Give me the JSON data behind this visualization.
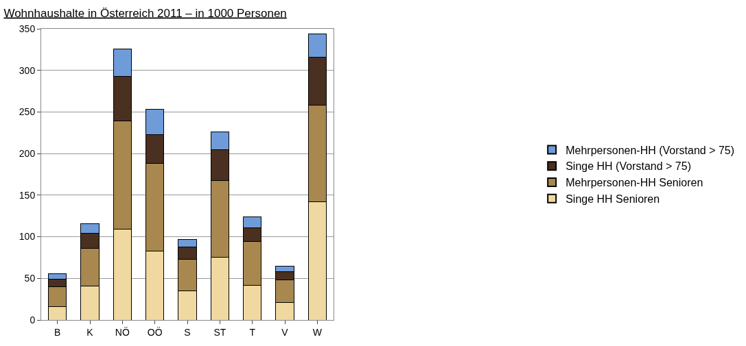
{
  "chart_data": {
    "type": "bar",
    "stacked": true,
    "title": "Wohnhaushalte in Österreich 2011 – in 1000 Personen",
    "categories": [
      "B",
      "K",
      "NÖ",
      "OÖ",
      "S",
      "ST",
      "T",
      "V",
      "W"
    ],
    "series": [
      {
        "name": "Singe HH Senioren",
        "color": "#f0d9a0",
        "values": [
          16,
          41,
          109,
          83,
          35,
          75,
          42,
          21,
          142
        ]
      },
      {
        "name": "Mehrpersonen-HH Senioren",
        "color": "#a8884f",
        "values": [
          24,
          45,
          130,
          105,
          38,
          93,
          52,
          27,
          116
        ]
      },
      {
        "name": "Singe HH (Vorstand > 75)",
        "color": "#4a3020",
        "values": [
          9,
          18,
          54,
          35,
          15,
          37,
          17,
          10,
          58
        ]
      },
      {
        "name": "Mehrpersonen-HH (Vorstand > 75)",
        "color": "#6f9bd8",
        "values": [
          7,
          12,
          33,
          30,
          9,
          21,
          13,
          7,
          28
        ]
      }
    ],
    "ylim": [
      0,
      350
    ],
    "yticks": [
      0,
      50,
      100,
      150,
      200,
      250,
      300,
      350
    ],
    "grid": "y",
    "legend": "right"
  }
}
